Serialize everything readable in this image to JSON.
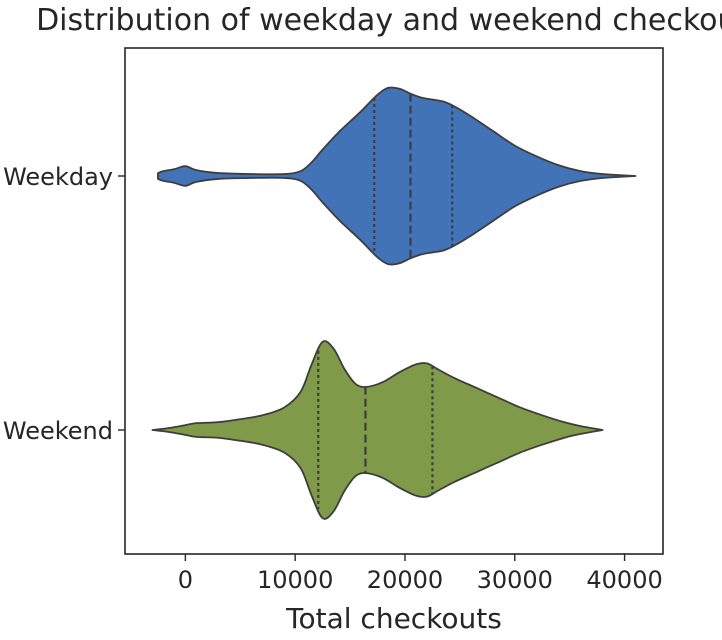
{
  "chart_data": {
    "type": "violin",
    "title": "Distribution of weekday and weekend checkouts",
    "xlabel": "Total checkouts",
    "ylabel": "",
    "xlim": [
      -5500,
      43500
    ],
    "xticks": [
      0,
      10000,
      20000,
      30000,
      40000
    ],
    "xtick_labels": [
      "0",
      "10000",
      "20000",
      "30000",
      "40000"
    ],
    "categories": [
      "Weekday",
      "Weekend"
    ],
    "grid": false,
    "inner": "quartile",
    "series": [
      {
        "name": "Weekday",
        "color": "#4373b7",
        "quartiles": [
          17200,
          20500,
          24300
        ],
        "density": [
          [
            -2500,
            0.03
          ],
          [
            -2000,
            0.05
          ],
          [
            -1000,
            0.07
          ],
          [
            0,
            0.1
          ],
          [
            1000,
            0.06
          ],
          [
            3000,
            0.03
          ],
          [
            6000,
            0.02
          ],
          [
            9000,
            0.02
          ],
          [
            10500,
            0.05
          ],
          [
            11500,
            0.14
          ],
          [
            12500,
            0.27
          ],
          [
            14000,
            0.45
          ],
          [
            16000,
            0.66
          ],
          [
            17500,
            0.83
          ],
          [
            18500,
            0.9
          ],
          [
            19500,
            0.89
          ],
          [
            20500,
            0.84
          ],
          [
            21500,
            0.8
          ],
          [
            22500,
            0.78
          ],
          [
            23500,
            0.76
          ],
          [
            24500,
            0.71
          ],
          [
            26000,
            0.61
          ],
          [
            28000,
            0.46
          ],
          [
            30000,
            0.31
          ],
          [
            32000,
            0.2
          ],
          [
            34000,
            0.11
          ],
          [
            36000,
            0.05
          ],
          [
            38000,
            0.02
          ],
          [
            41000,
            0.0
          ]
        ]
      },
      {
        "name": "Weekend",
        "color": "#7f9a48",
        "quartiles": [
          12100,
          16400,
          22500
        ],
        "density": [
          [
            -3000,
            0.0
          ],
          [
            -1500,
            0.02
          ],
          [
            0,
            0.05
          ],
          [
            1000,
            0.07
          ],
          [
            3000,
            0.08
          ],
          [
            5000,
            0.11
          ],
          [
            7000,
            0.15
          ],
          [
            9000,
            0.23
          ],
          [
            10500,
            0.39
          ],
          [
            11500,
            0.67
          ],
          [
            12500,
            0.9
          ],
          [
            13500,
            0.83
          ],
          [
            14500,
            0.62
          ],
          [
            15500,
            0.47
          ],
          [
            16500,
            0.44
          ],
          [
            18000,
            0.49
          ],
          [
            19500,
            0.59
          ],
          [
            21000,
            0.67
          ],
          [
            22000,
            0.68
          ],
          [
            23000,
            0.62
          ],
          [
            24500,
            0.53
          ],
          [
            26500,
            0.43
          ],
          [
            28500,
            0.33
          ],
          [
            30500,
            0.23
          ],
          [
            32500,
            0.15
          ],
          [
            34500,
            0.08
          ],
          [
            36000,
            0.04
          ],
          [
            38000,
            0.0
          ]
        ]
      }
    ]
  }
}
